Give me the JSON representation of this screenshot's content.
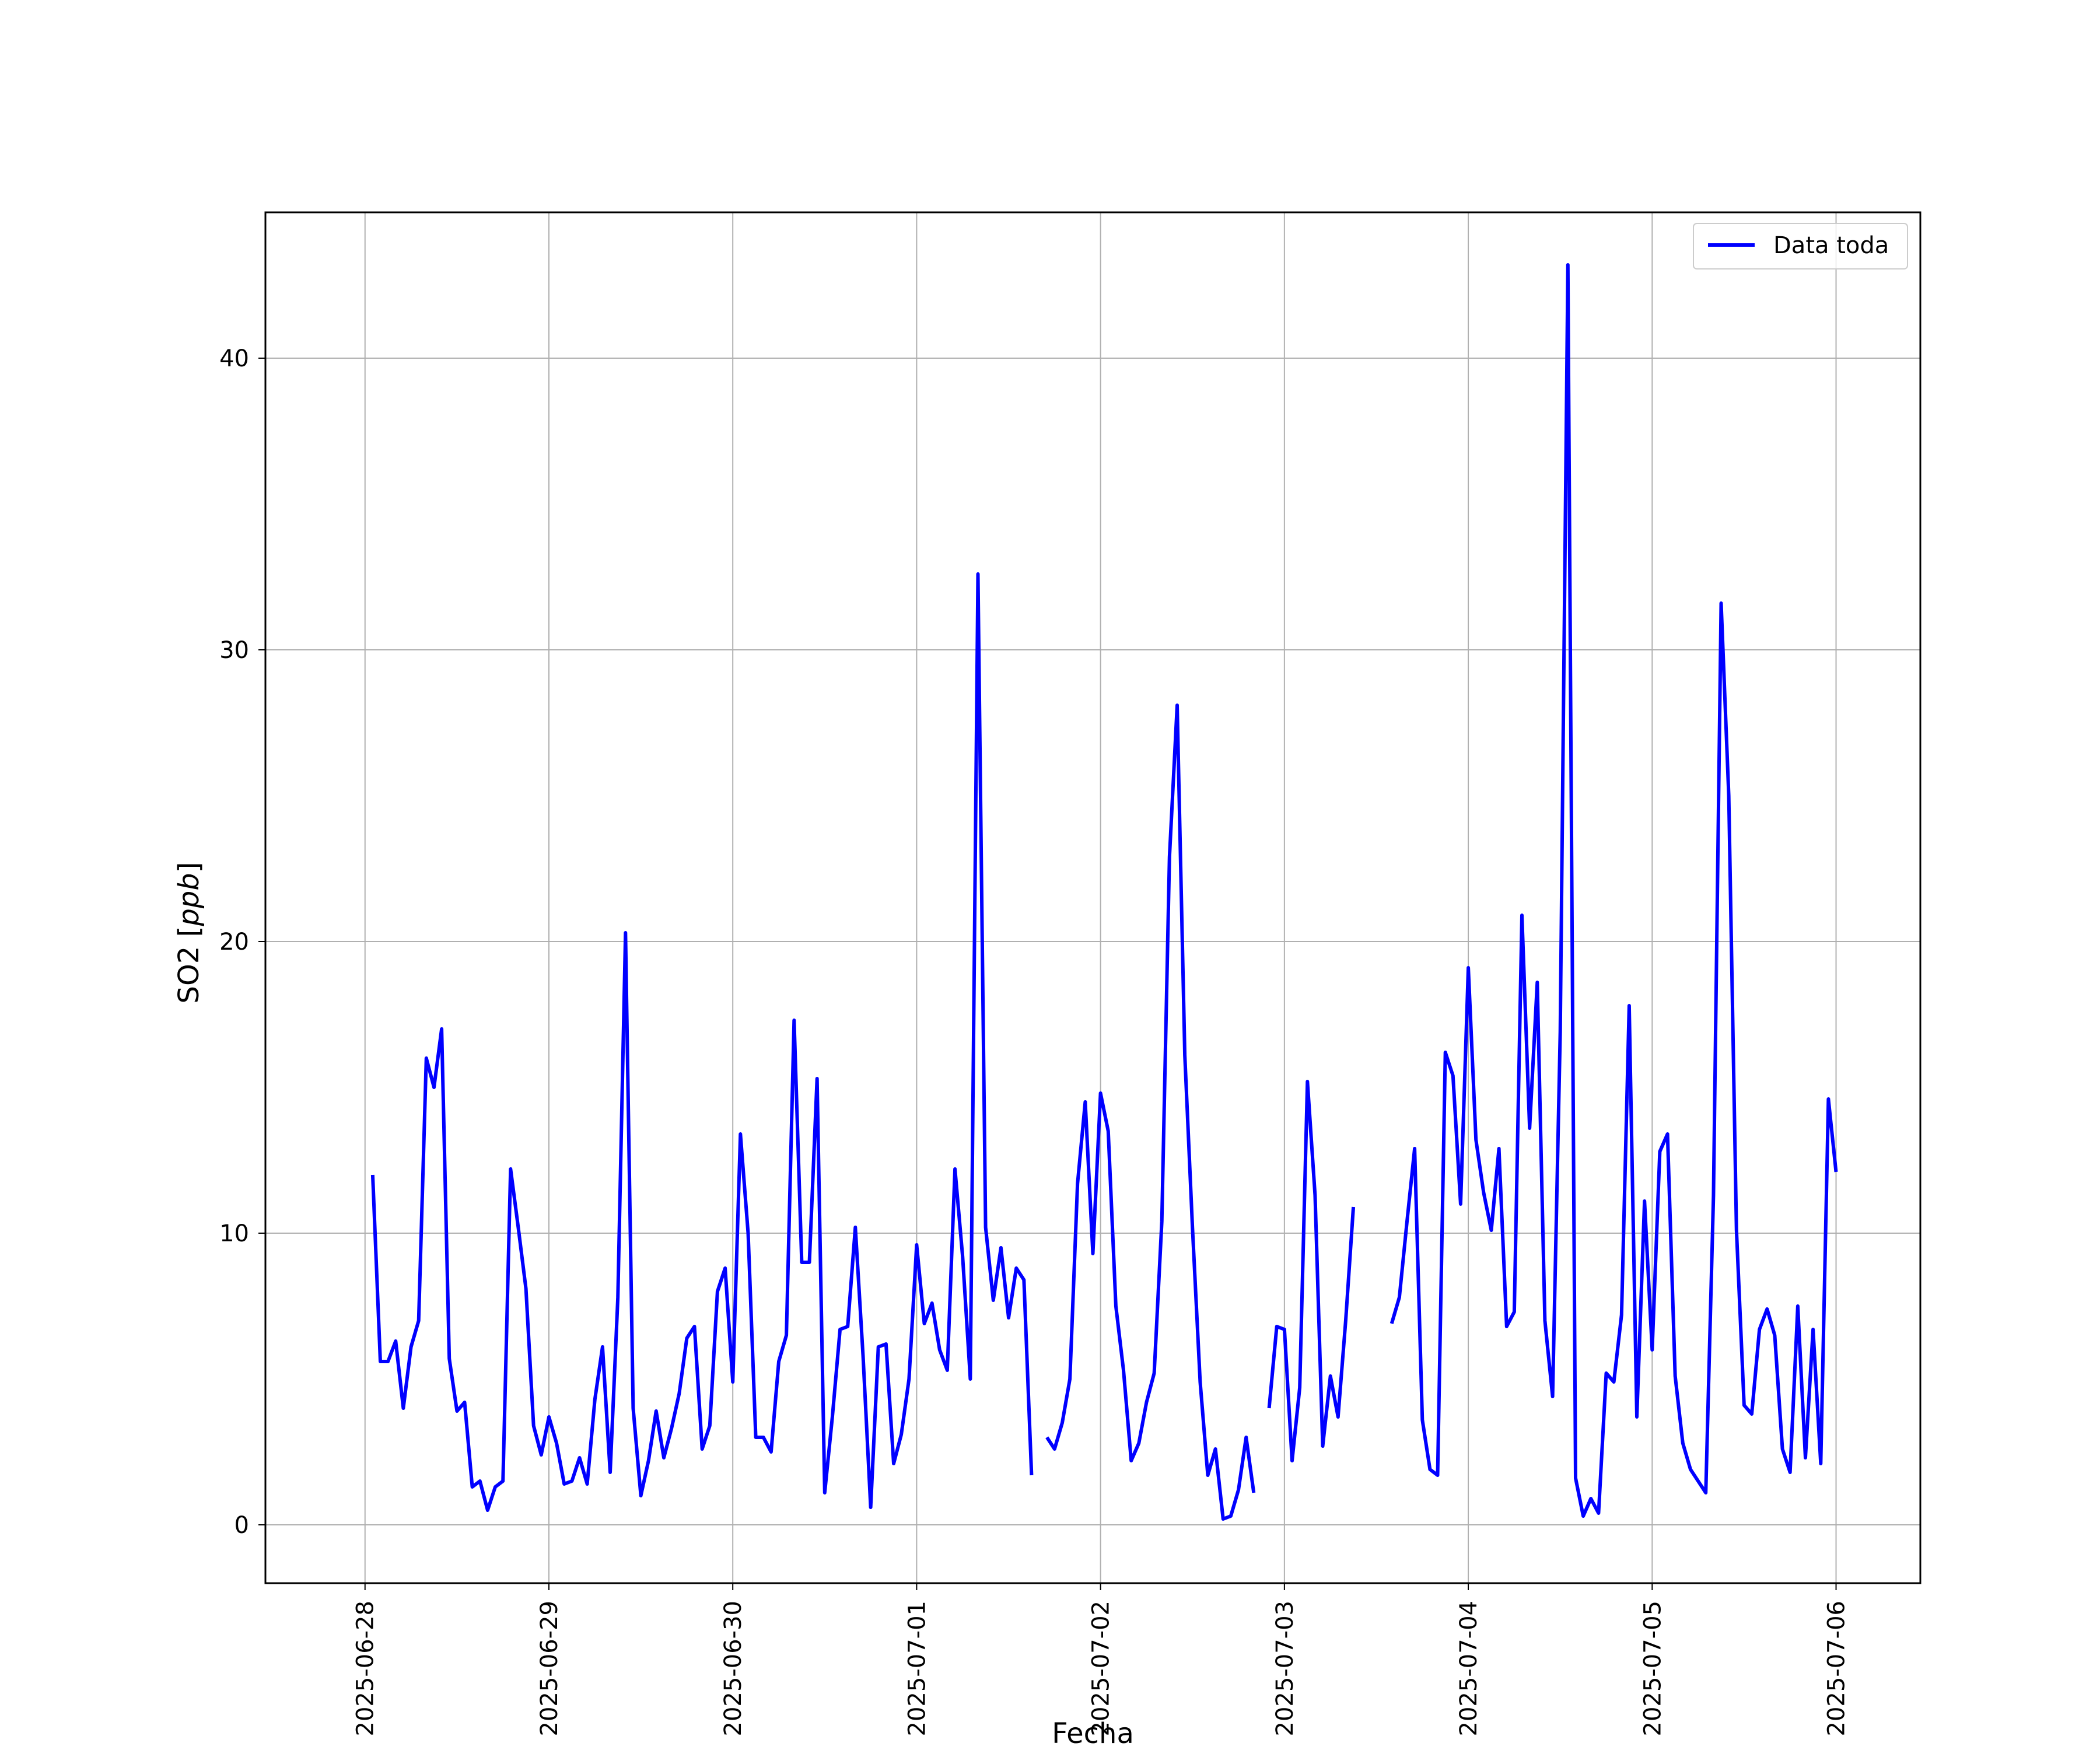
{
  "chart_data": {
    "type": "line",
    "title": "",
    "xlabel": "Fecha",
    "ylabel": "SO2",
    "ylabel_unit": "ppb",
    "ylabel_open": "[",
    "ylabel_close": "]",
    "ylim": [
      -2,
      45
    ],
    "xlim": [
      "2025-06-27T11:00",
      "2025-07-06T11:00"
    ],
    "grid": true,
    "legend_position": "top-right",
    "x_ticks": [
      "2025-06-28",
      "2025-06-29",
      "2025-06-30",
      "2025-07-01",
      "2025-07-02",
      "2025-07-03",
      "2025-07-04",
      "2025-07-05",
      "2025-07-06"
    ],
    "y_ticks": [
      0,
      10,
      20,
      30,
      40
    ],
    "series": [
      {
        "name": "Data toda",
        "color": "#0000ff",
        "points": [
          [
            "2025-06-28T01:00",
            12.0
          ],
          [
            "2025-06-28T02:00",
            5.6
          ],
          [
            "2025-06-28T03:00",
            5.6
          ],
          [
            "2025-06-28T04:00",
            6.3
          ],
          [
            "2025-06-28T05:00",
            4.0
          ],
          [
            "2025-06-28T06:00",
            6.1
          ],
          [
            "2025-06-28T07:00",
            7.0
          ],
          [
            "2025-06-28T08:00",
            16.0
          ],
          [
            "2025-06-28T09:00",
            15.0
          ],
          [
            "2025-06-28T10:00",
            17.0
          ],
          [
            "2025-06-28T11:00",
            5.7
          ],
          [
            "2025-06-28T12:00",
            3.9
          ],
          [
            "2025-06-28T13:00",
            4.2
          ],
          [
            "2025-06-28T14:00",
            1.3
          ],
          [
            "2025-06-28T15:00",
            1.5
          ],
          [
            "2025-06-28T16:00",
            0.5
          ],
          [
            "2025-06-28T17:00",
            1.3
          ],
          [
            "2025-06-28T18:00",
            1.5
          ],
          [
            "2025-06-28T19:00",
            12.2
          ],
          [
            "2025-06-28T20:00",
            10.2
          ],
          [
            "2025-06-28T21:00",
            8.1
          ],
          [
            "2025-06-28T22:00",
            3.4
          ],
          [
            "2025-06-28T23:00",
            2.4
          ],
          [
            "2025-06-29T00:00",
            3.7
          ],
          [
            "2025-06-29T01:00",
            2.8
          ],
          [
            "2025-06-29T02:00",
            1.4
          ],
          [
            "2025-06-29T03:00",
            1.5
          ],
          [
            "2025-06-29T04:00",
            2.3
          ],
          [
            "2025-06-29T05:00",
            1.4
          ],
          [
            "2025-06-29T06:00",
            4.3
          ],
          [
            "2025-06-29T07:00",
            6.1
          ],
          [
            "2025-06-29T08:00",
            1.8
          ],
          [
            "2025-06-29T09:00",
            7.8
          ],
          [
            "2025-06-29T10:00",
            20.3
          ],
          [
            "2025-06-29T11:00",
            4.0
          ],
          [
            "2025-06-29T12:00",
            1.0
          ],
          [
            "2025-06-29T13:00",
            2.2
          ],
          [
            "2025-06-29T14:00",
            3.9
          ],
          [
            "2025-06-29T15:00",
            2.3
          ],
          [
            "2025-06-29T16:00",
            3.3
          ],
          [
            "2025-06-29T17:00",
            4.5
          ],
          [
            "2025-06-29T18:00",
            6.4
          ],
          [
            "2025-06-29T19:00",
            6.8
          ],
          [
            "2025-06-29T20:00",
            2.6
          ],
          [
            "2025-06-29T21:00",
            3.4
          ],
          [
            "2025-06-29T22:00",
            8.0
          ],
          [
            "2025-06-29T23:00",
            8.8
          ],
          [
            "2025-06-30T00:00",
            4.9
          ],
          [
            "2025-06-30T01:00",
            13.4
          ],
          [
            "2025-06-30T02:00",
            10.0
          ],
          [
            "2025-06-30T03:00",
            3.0
          ],
          [
            "2025-06-30T04:00",
            3.0
          ],
          [
            "2025-06-30T05:00",
            2.5
          ],
          [
            "2025-06-30T06:00",
            5.6
          ],
          [
            "2025-06-30T07:00",
            6.5
          ],
          [
            "2025-06-30T08:00",
            17.3
          ],
          [
            "2025-06-30T09:00",
            9.0
          ],
          [
            "2025-06-30T10:00",
            9.0
          ],
          [
            "2025-06-30T11:00",
            15.3
          ],
          [
            "2025-06-30T12:00",
            1.1
          ],
          [
            "2025-06-30T13:00",
            3.7
          ],
          [
            "2025-06-30T14:00",
            6.7
          ],
          [
            "2025-06-30T15:00",
            6.8
          ],
          [
            "2025-06-30T16:00",
            10.2
          ],
          [
            "2025-06-30T17:00",
            5.8
          ],
          [
            "2025-06-30T18:00",
            0.6
          ],
          [
            "2025-06-30T19:00",
            6.1
          ],
          [
            "2025-06-30T20:00",
            6.2
          ],
          [
            "2025-06-30T21:00",
            2.1
          ],
          [
            "2025-06-30T22:00",
            3.1
          ],
          [
            "2025-06-30T23:00",
            5.0
          ],
          [
            "2025-07-01T00:00",
            9.6
          ],
          [
            "2025-07-01T01:00",
            6.9
          ],
          [
            "2025-07-01T02:00",
            7.6
          ],
          [
            "2025-07-01T03:00",
            6.0
          ],
          [
            "2025-07-01T04:00",
            5.3
          ],
          [
            "2025-07-01T05:00",
            12.2
          ],
          [
            "2025-07-01T06:00",
            9.2
          ],
          [
            "2025-07-01T07:00",
            5.0
          ],
          [
            "2025-07-01T08:00",
            32.6
          ],
          [
            "2025-07-01T09:00",
            10.2
          ],
          [
            "2025-07-01T10:00",
            7.7
          ],
          [
            "2025-07-01T11:00",
            9.5
          ],
          [
            "2025-07-01T12:00",
            7.1
          ],
          [
            "2025-07-01T13:00",
            8.8
          ],
          [
            "2025-07-01T14:00",
            8.4
          ],
          [
            "2025-07-01T15:00",
            1.7
          ],
          null,
          [
            "2025-07-01T17:00",
            3.0
          ],
          [
            "2025-07-01T18:00",
            2.6
          ],
          [
            "2025-07-01T19:00",
            3.5
          ],
          [
            "2025-07-01T20:00",
            5.0
          ],
          [
            "2025-07-01T21:00",
            11.7
          ],
          [
            "2025-07-01T22:00",
            14.5
          ],
          [
            "2025-07-01T23:00",
            9.3
          ],
          [
            "2025-07-02T00:00",
            14.8
          ],
          [
            "2025-07-02T01:00",
            13.5
          ],
          [
            "2025-07-02T02:00",
            7.5
          ],
          [
            "2025-07-02T03:00",
            5.3
          ],
          [
            "2025-07-02T04:00",
            2.2
          ],
          [
            "2025-07-02T05:00",
            2.8
          ],
          [
            "2025-07-02T06:00",
            4.2
          ],
          [
            "2025-07-02T07:00",
            5.2
          ],
          [
            "2025-07-02T08:00",
            10.4
          ],
          [
            "2025-07-02T09:00",
            22.9
          ],
          [
            "2025-07-02T10:00",
            28.1
          ],
          [
            "2025-07-02T11:00",
            16.1
          ],
          [
            "2025-07-02T12:00",
            10.2
          ],
          [
            "2025-07-02T13:00",
            4.9
          ],
          [
            "2025-07-02T14:00",
            1.7
          ],
          [
            "2025-07-02T15:00",
            2.6
          ],
          [
            "2025-07-02T16:00",
            0.2
          ],
          [
            "2025-07-02T17:00",
            0.3
          ],
          [
            "2025-07-02T18:00",
            1.2
          ],
          [
            "2025-07-02T19:00",
            3.0
          ],
          [
            "2025-07-02T20:00",
            1.1
          ],
          null,
          [
            "2025-07-02T22:00",
            4.0
          ],
          [
            "2025-07-02T23:00",
            6.8
          ],
          [
            "2025-07-03T00:00",
            6.7
          ],
          [
            "2025-07-03T01:00",
            2.2
          ],
          [
            "2025-07-03T02:00",
            4.7
          ],
          [
            "2025-07-03T03:00",
            15.2
          ],
          [
            "2025-07-03T04:00",
            11.3
          ],
          [
            "2025-07-03T05:00",
            2.7
          ],
          [
            "2025-07-03T06:00",
            5.1
          ],
          [
            "2025-07-03T07:00",
            3.7
          ],
          [
            "2025-07-03T08:00",
            7.0
          ],
          [
            "2025-07-03T09:00",
            10.9
          ],
          null,
          [
            "2025-07-03T14:00",
            6.9
          ],
          [
            "2025-07-03T15:00",
            7.8
          ],
          [
            "2025-07-03T16:00",
            10.4
          ],
          [
            "2025-07-03T17:00",
            12.9
          ],
          [
            "2025-07-03T18:00",
            3.6
          ],
          [
            "2025-07-03T19:00",
            1.9
          ],
          [
            "2025-07-03T20:00",
            1.7
          ],
          [
            "2025-07-03T21:00",
            16.2
          ],
          [
            "2025-07-03T22:00",
            15.4
          ],
          [
            "2025-07-03T23:00",
            11.0
          ],
          [
            "2025-07-04T00:00",
            19.1
          ],
          [
            "2025-07-04T01:00",
            13.2
          ],
          [
            "2025-07-04T02:00",
            11.4
          ],
          [
            "2025-07-04T03:00",
            10.1
          ],
          [
            "2025-07-04T04:00",
            12.9
          ],
          [
            "2025-07-04T05:00",
            6.8
          ],
          [
            "2025-07-04T06:00",
            7.3
          ],
          [
            "2025-07-04T07:00",
            20.9
          ],
          [
            "2025-07-04T08:00",
            13.6
          ],
          [
            "2025-07-04T09:00",
            18.6
          ],
          [
            "2025-07-04T10:00",
            7.0
          ],
          [
            "2025-07-04T11:00",
            4.4
          ],
          [
            "2025-07-04T12:00",
            16.9
          ],
          [
            "2025-07-04T13:00",
            43.2
          ],
          [
            "2025-07-04T14:00",
            1.6
          ],
          [
            "2025-07-04T15:00",
            0.3
          ],
          [
            "2025-07-04T16:00",
            0.9
          ],
          [
            "2025-07-04T17:00",
            0.4
          ],
          [
            "2025-07-04T18:00",
            5.2
          ],
          [
            "2025-07-04T19:00",
            4.9
          ],
          [
            "2025-07-04T20:00",
            7.2
          ],
          [
            "2025-07-04T21:00",
            17.8
          ],
          [
            "2025-07-04T22:00",
            3.7
          ],
          [
            "2025-07-04T23:00",
            11.1
          ],
          [
            "2025-07-05T00:00",
            6.0
          ],
          [
            "2025-07-05T01:00",
            12.8
          ],
          [
            "2025-07-05T02:00",
            13.4
          ],
          [
            "2025-07-05T03:00",
            5.1
          ],
          [
            "2025-07-05T04:00",
            2.8
          ],
          [
            "2025-07-05T05:00",
            1.9
          ],
          [
            "2025-07-05T06:00",
            1.5
          ],
          [
            "2025-07-05T07:00",
            1.1
          ],
          [
            "2025-07-05T08:00",
            11.3
          ],
          [
            "2025-07-05T09:00",
            31.6
          ],
          [
            "2025-07-05T10:00",
            25.0
          ],
          [
            "2025-07-05T11:00",
            10.1
          ],
          [
            "2025-07-05T12:00",
            4.1
          ],
          [
            "2025-07-05T13:00",
            3.8
          ],
          [
            "2025-07-05T14:00",
            6.7
          ],
          [
            "2025-07-05T15:00",
            7.4
          ],
          [
            "2025-07-05T16:00",
            6.5
          ],
          [
            "2025-07-05T17:00",
            2.6
          ],
          [
            "2025-07-05T18:00",
            1.8
          ],
          [
            "2025-07-05T19:00",
            7.5
          ],
          [
            "2025-07-05T20:00",
            2.3
          ],
          [
            "2025-07-05T21:00",
            6.7
          ],
          [
            "2025-07-05T22:00",
            2.1
          ],
          [
            "2025-07-05T23:00",
            14.6
          ],
          [
            "2025-07-06T00:00",
            12.1
          ]
        ]
      }
    ]
  }
}
